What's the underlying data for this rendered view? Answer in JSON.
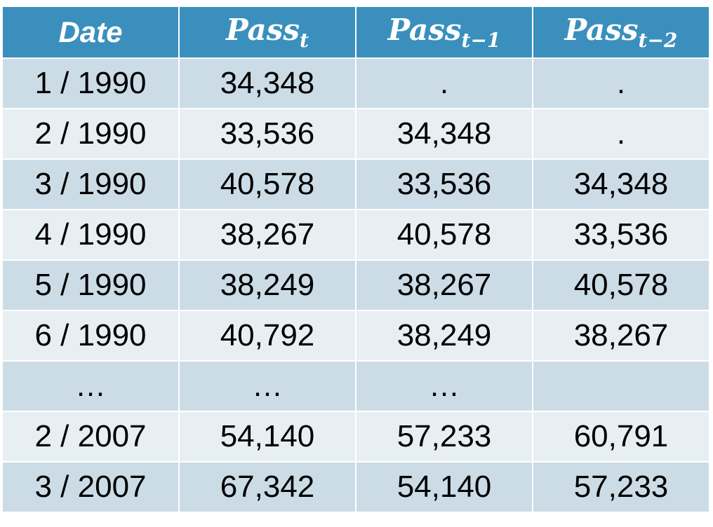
{
  "header": {
    "date": "Date",
    "pass_base": "Pass",
    "pass_t_sub": "t",
    "pass_t1_sub": "t−1",
    "pass_t2_sub": "t−2"
  },
  "rows": [
    {
      "date": "1 / 1990",
      "pass_t": "34,348",
      "pass_t1": ".",
      "pass_t2": "."
    },
    {
      "date": "2 / 1990",
      "pass_t": "33,536",
      "pass_t1": "34,348",
      "pass_t2": "."
    },
    {
      "date": "3 / 1990",
      "pass_t": "40,578",
      "pass_t1": "33,536",
      "pass_t2": "34,348"
    },
    {
      "date": "4 / 1990",
      "pass_t": "38,267",
      "pass_t1": "40,578",
      "pass_t2": "33,536"
    },
    {
      "date": "5 / 1990",
      "pass_t": "38,249",
      "pass_t1": "38,267",
      "pass_t2": "40,578"
    },
    {
      "date": "6 / 1990",
      "pass_t": "40,792",
      "pass_t1": "38,249",
      "pass_t2": "38,267"
    },
    {
      "date": "…",
      "pass_t": "…",
      "pass_t1": "…",
      "pass_t2": ""
    },
    {
      "date": "2 / 2007",
      "pass_t": "54,140",
      "pass_t1": "57,233",
      "pass_t2": "60,791"
    },
    {
      "date": "3 / 2007",
      "pass_t": "67,342",
      "pass_t1": "54,140",
      "pass_t2": "57,233"
    }
  ],
  "colors": {
    "header_bg": "#3a8fbd",
    "row_dark": "#ccdce7",
    "row_light": "#e8eff3"
  }
}
